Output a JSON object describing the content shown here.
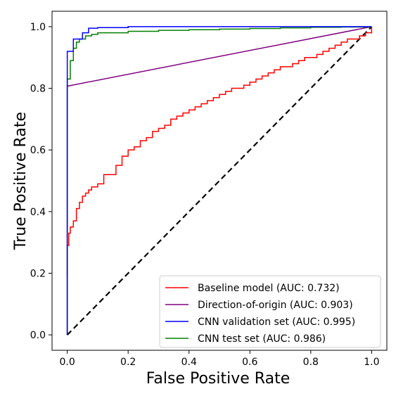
{
  "chart_data": {
    "type": "line",
    "title": "",
    "xlabel": "False Positive Rate",
    "ylabel": "True Positive Rate",
    "xlim": [
      -0.05,
      1.05
    ],
    "ylim": [
      -0.05,
      1.05
    ],
    "xticks": [
      "0.0",
      "0.2",
      "0.4",
      "0.6",
      "0.8",
      "1.0"
    ],
    "yticks": [
      "0.0",
      "0.2",
      "0.4",
      "0.6",
      "0.8",
      "1.0"
    ],
    "grid": false,
    "legend_position": "lower-right",
    "series": [
      {
        "name": "Baseline model (AUC: 0.732)",
        "color": "#ff0000",
        "step": true,
        "x": [
          0.0,
          0.0,
          0.005,
          0.01,
          0.02,
          0.03,
          0.04,
          0.05,
          0.06,
          0.07,
          0.08,
          0.09,
          0.1,
          0.12,
          0.14,
          0.16,
          0.18,
          0.2,
          0.22,
          0.24,
          0.26,
          0.28,
          0.3,
          0.32,
          0.34,
          0.36,
          0.38,
          0.4,
          0.42,
          0.44,
          0.46,
          0.48,
          0.5,
          0.52,
          0.54,
          0.56,
          0.58,
          0.6,
          0.62,
          0.64,
          0.66,
          0.68,
          0.7,
          0.72,
          0.74,
          0.76,
          0.78,
          0.8,
          0.82,
          0.84,
          0.86,
          0.88,
          0.9,
          0.92,
          0.94,
          0.96,
          0.98,
          1.0
        ],
        "y": [
          0.19,
          0.29,
          0.33,
          0.35,
          0.37,
          0.41,
          0.43,
          0.45,
          0.46,
          0.47,
          0.48,
          0.48,
          0.49,
          0.52,
          0.52,
          0.55,
          0.58,
          0.6,
          0.61,
          0.63,
          0.64,
          0.66,
          0.67,
          0.68,
          0.7,
          0.71,
          0.72,
          0.73,
          0.74,
          0.75,
          0.76,
          0.77,
          0.78,
          0.79,
          0.8,
          0.8,
          0.81,
          0.82,
          0.83,
          0.84,
          0.85,
          0.86,
          0.87,
          0.87,
          0.88,
          0.89,
          0.9,
          0.9,
          0.91,
          0.92,
          0.93,
          0.94,
          0.95,
          0.96,
          0.96,
          0.97,
          0.98,
          1.0
        ]
      },
      {
        "name": "Direction-of-origin (AUC: 0.903)",
        "color": "#800080",
        "step": false,
        "x": [
          0.0,
          0.0,
          1.0
        ],
        "y": [
          0.0,
          0.807,
          1.0
        ]
      },
      {
        "name": "CNN validation set (AUC: 0.995)",
        "color": "#0000ff",
        "step": true,
        "x": [
          0.0,
          0.0,
          0.0,
          0.01,
          0.02,
          0.03,
          0.05,
          0.07,
          0.1,
          0.2,
          1.0
        ],
        "y": [
          0.0,
          0.83,
          0.92,
          0.92,
          0.96,
          0.96,
          0.98,
          0.995,
          0.997,
          1.0,
          1.0
        ]
      },
      {
        "name": "CNN test set (AUC: 0.986)",
        "color": "#008000",
        "step": true,
        "x": [
          0.0,
          0.0,
          0.01,
          0.02,
          0.03,
          0.04,
          0.06,
          0.08,
          0.1,
          0.2,
          0.3,
          0.4,
          0.5,
          0.6,
          0.7,
          0.8,
          0.9,
          1.0
        ],
        "y": [
          0.0,
          0.83,
          0.89,
          0.93,
          0.95,
          0.96,
          0.97,
          0.975,
          0.98,
          0.985,
          0.988,
          0.99,
          0.992,
          0.994,
          0.996,
          0.998,
          0.999,
          1.0
        ]
      },
      {
        "name": "",
        "color": "#000000",
        "step": false,
        "dashed": true,
        "x": [
          0.0,
          1.0
        ],
        "y": [
          0.0,
          1.0
        ]
      }
    ]
  }
}
